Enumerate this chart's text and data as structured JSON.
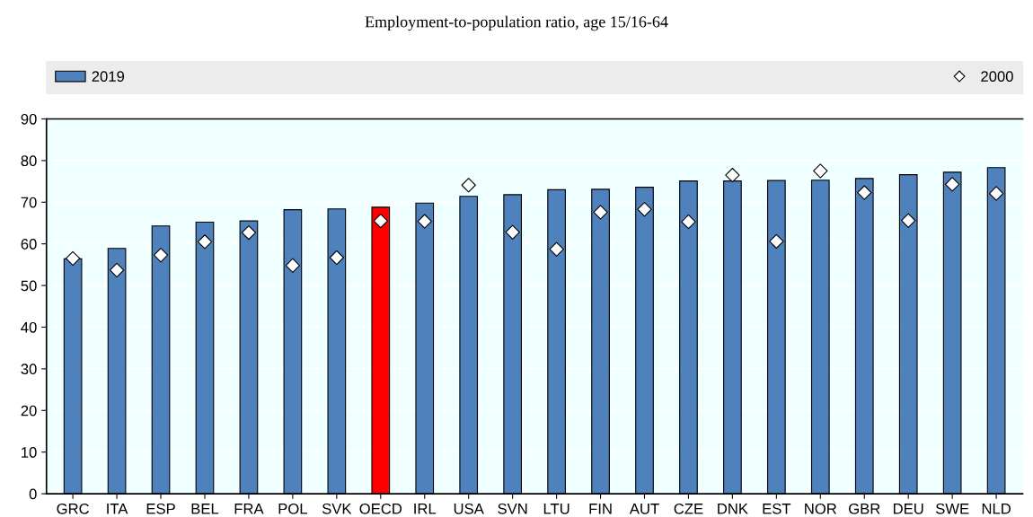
{
  "chart_data": {
    "type": "bar",
    "title": "Employment-to-population ratio, age 15/16-64",
    "categories": [
      "GRC",
      "ITA",
      "ESP",
      "BEL",
      "FRA",
      "POL",
      "SVK",
      "OECD",
      "IRL",
      "USA",
      "SVN",
      "LTU",
      "FIN",
      "AUT",
      "CZE",
      "DNK",
      "EST",
      "NOR",
      "GBR",
      "DEU",
      "SWE",
      "NLD"
    ],
    "series": [
      {
        "name": "2019",
        "color": "#4f81bd",
        "colors": [
          "#4f81bd",
          "#4f81bd",
          "#4f81bd",
          "#4f81bd",
          "#4f81bd",
          "#4f81bd",
          "#4f81bd",
          "#ff0000",
          "#4f81bd",
          "#4f81bd",
          "#4f81bd",
          "#4f81bd",
          "#4f81bd",
          "#4f81bd",
          "#4f81bd",
          "#4f81bd",
          "#4f81bd",
          "#4f81bd",
          "#4f81bd",
          "#4f81bd",
          "#4f81bd",
          "#4f81bd"
        ],
        "values": [
          56.4,
          58.9,
          64.3,
          65.2,
          65.5,
          68.2,
          68.4,
          68.8,
          69.8,
          71.4,
          71.8,
          73.0,
          73.1,
          73.6,
          75.1,
          75.1,
          75.2,
          75.3,
          75.7,
          76.6,
          77.2,
          78.3
        ]
      },
      {
        "name": "2000",
        "type": "scatter",
        "marker": "diamond",
        "color": "#ffffff",
        "values": [
          56.5,
          53.7,
          57.3,
          60.5,
          62.7,
          54.8,
          56.7,
          65.5,
          65.4,
          74.1,
          62.8,
          58.7,
          67.6,
          68.3,
          65.3,
          76.5,
          60.6,
          77.5,
          72.3,
          65.6,
          74.3,
          72.1
        ]
      }
    ],
    "ylim": [
      0,
      90
    ],
    "yticks": [
      0,
      10,
      20,
      30,
      40,
      50,
      60,
      70,
      80,
      90
    ],
    "grid": "y",
    "legend": "top"
  }
}
